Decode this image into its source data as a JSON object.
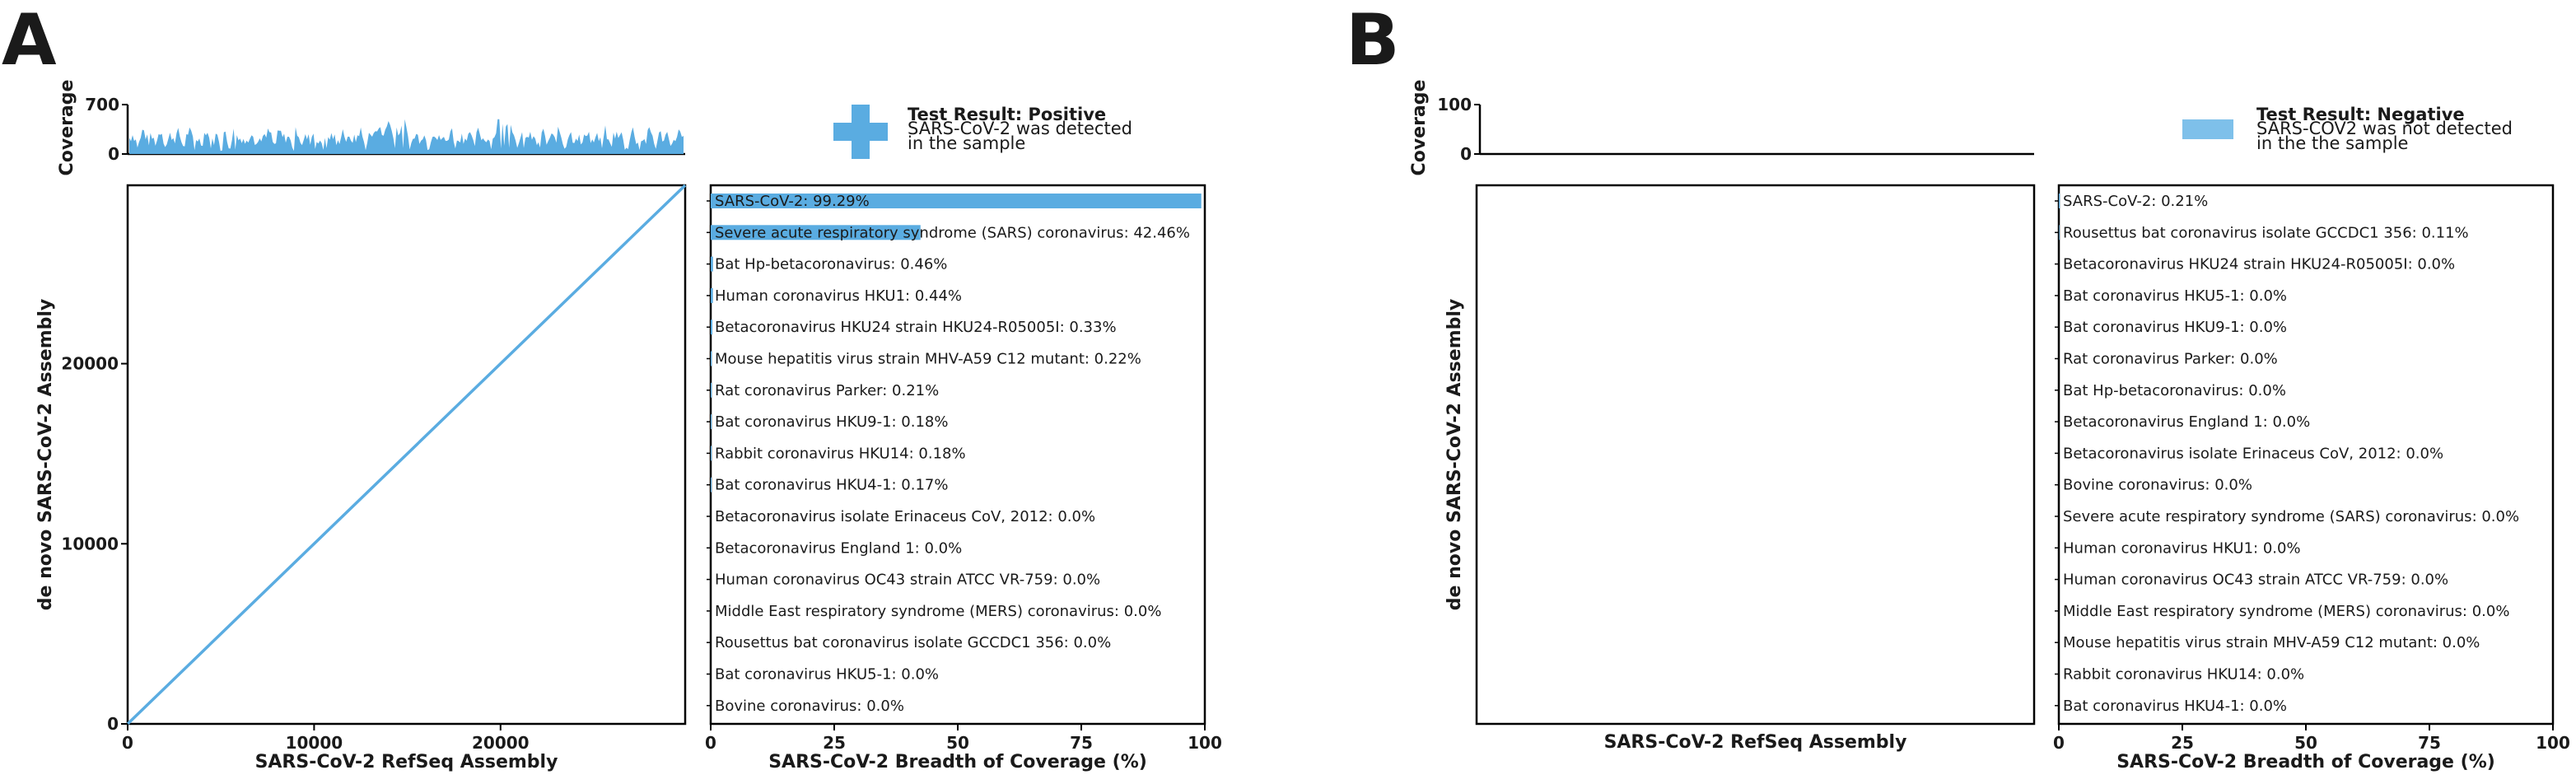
{
  "colors": {
    "accent": "#5aace1",
    "accent_light": "#7ec0ea",
    "axis": "#000000"
  },
  "panels": [
    {
      "letter": "A",
      "coverage": {
        "ylabel": "Coverage",
        "yticks": [
          "700",
          "0"
        ],
        "ymax": 700,
        "has_signal": true
      },
      "scatter": {
        "type": "line",
        "xlabel": "SARS-CoV-2 RefSeq Assembly",
        "ylabel": "de novo SARS-CoV-2 Assembly",
        "xlim": [
          0,
          29903
        ],
        "ylim": [
          0,
          29903
        ],
        "x": [
          0,
          29903
        ],
        "y": [
          0,
          29903
        ],
        "xticks": [
          {
            "v": 0,
            "l": "0"
          },
          {
            "v": 10000,
            "l": "10000"
          },
          {
            "v": 20000,
            "l": "20000"
          }
        ],
        "yticks": [
          {
            "v": 0,
            "l": "0"
          },
          {
            "v": 10000,
            "l": "10000"
          },
          {
            "v": 20000,
            "l": "20000"
          }
        ],
        "show_ticks": true
      },
      "legend": {
        "icon": "plus-icon",
        "title": "Test Result: Positive",
        "lines": [
          "SARS-CoV-2 was detected",
          "in the sample"
        ]
      },
      "chart_data": {
        "type": "bar",
        "orientation": "horizontal",
        "xlabel": "SARS-CoV-2 Breadth of Coverage (%)",
        "xlim": [
          0,
          100
        ],
        "xticks": [
          "0",
          "25",
          "50",
          "75",
          "100"
        ],
        "categories": [
          "SARS-CoV-2: 99.29%",
          "Severe acute respiratory syndrome (SARS) coronavirus: 42.46%",
          "Bat Hp-betacoronavirus: 0.46%",
          "Human coronavirus HKU1: 0.44%",
          "Betacoronavirus HKU24 strain HKU24-R05005I: 0.33%",
          "Mouse hepatitis virus strain MHV-A59 C12 mutant: 0.22%",
          "Rat coronavirus Parker: 0.21%",
          "Bat coronavirus HKU9-1: 0.18%",
          "Rabbit coronavirus HKU14: 0.18%",
          "Bat coronavirus HKU4-1: 0.17%",
          "Betacoronavirus isolate Erinaceus CoV, 2012: 0.0%",
          "Betacoronavirus England 1: 0.0%",
          "Human coronavirus OC43 strain ATCC VR-759: 0.0%",
          "Middle East respiratory syndrome (MERS) coronavirus: 0.0%",
          "Rousettus bat coronavirus isolate GCCDC1 356: 0.0%",
          "Bat coronavirus HKU5-1: 0.0%",
          "Bovine coronavirus: 0.0%"
        ],
        "values": [
          99.29,
          42.46,
          0.46,
          0.44,
          0.33,
          0.22,
          0.21,
          0.18,
          0.18,
          0.17,
          0.0,
          0.0,
          0.0,
          0.0,
          0.0,
          0.0,
          0.0
        ]
      }
    },
    {
      "letter": "B",
      "coverage": {
        "ylabel": "Coverage",
        "yticks": [
          "100",
          "0"
        ],
        "ymax": 100,
        "has_signal": false
      },
      "scatter": {
        "type": "line",
        "xlabel": "SARS-CoV-2 RefSeq Assembly",
        "ylabel": "de novo SARS-CoV-2 Assembly",
        "xlim": [
          0,
          29903
        ],
        "ylim": [
          0,
          29903
        ],
        "x": [],
        "y": [],
        "xticks": [],
        "yticks": [],
        "show_ticks": false
      },
      "legend": {
        "icon": "rectangle-icon",
        "title": "Test Result: Negative",
        "lines": [
          "SARS-COV2 was not detected",
          "in the the sample"
        ]
      },
      "chart_data": {
        "type": "bar",
        "orientation": "horizontal",
        "xlabel": "SARS-CoV-2 Breadth of Coverage (%)",
        "xlim": [
          0,
          100
        ],
        "xticks": [
          "0",
          "25",
          "50",
          "75",
          "100"
        ],
        "categories": [
          "SARS-CoV-2: 0.21%",
          "Rousettus bat coronavirus isolate GCCDC1 356: 0.11%",
          "Betacoronavirus HKU24 strain HKU24-R05005I: 0.0%",
          "Bat coronavirus HKU5-1: 0.0%",
          "Bat coronavirus HKU9-1: 0.0%",
          "Rat coronavirus Parker: 0.0%",
          "Bat Hp-betacoronavirus: 0.0%",
          "Betacoronavirus England 1: 0.0%",
          "Betacoronavirus isolate Erinaceus CoV, 2012: 0.0%",
          "Bovine coronavirus: 0.0%",
          "Severe acute respiratory syndrome (SARS) coronavirus: 0.0%",
          "Human coronavirus HKU1: 0.0%",
          "Human coronavirus OC43 strain ATCC VR-759: 0.0%",
          "Middle East respiratory syndrome (MERS) coronavirus: 0.0%",
          "Mouse hepatitis virus strain MHV-A59 C12 mutant: 0.0%",
          "Rabbit coronavirus HKU14: 0.0%",
          "Bat coronavirus HKU4-1: 0.0%"
        ],
        "values": [
          0.21,
          0.11,
          0.0,
          0.0,
          0.0,
          0.0,
          0.0,
          0.0,
          0.0,
          0.0,
          0.0,
          0.0,
          0.0,
          0.0,
          0.0,
          0.0,
          0.0
        ]
      }
    }
  ]
}
